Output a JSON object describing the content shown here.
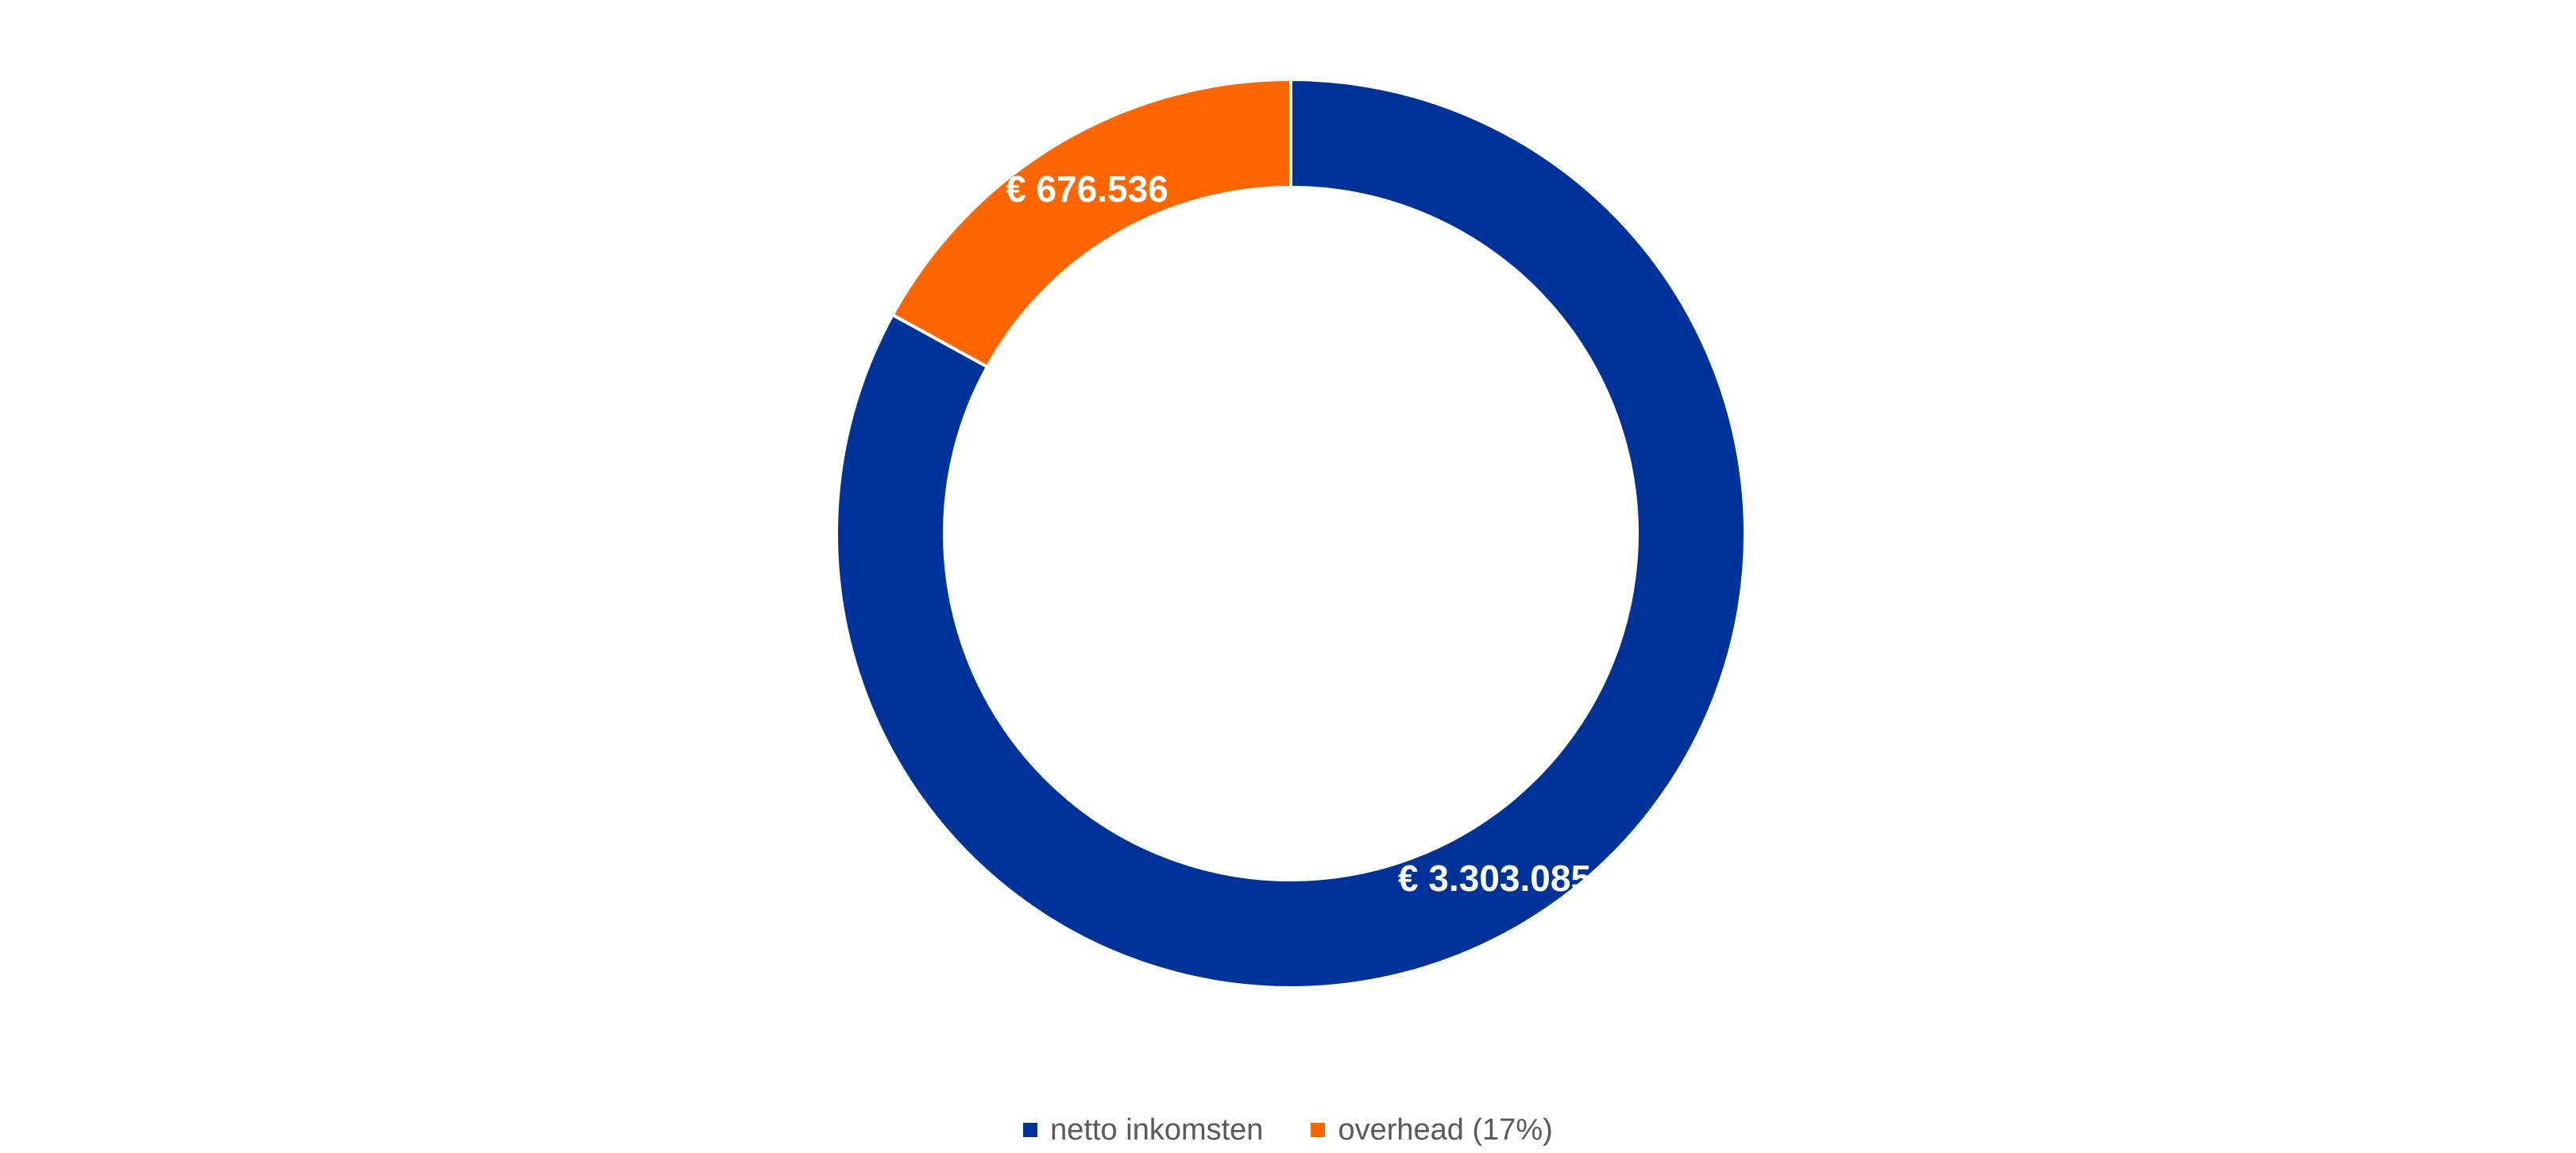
{
  "chart_data": {
    "type": "pie",
    "variant": "donut",
    "series": [
      {
        "name": "netto inkomsten",
        "value": 3303085,
        "label": "€ 3.303.085",
        "color": "#003399"
      },
      {
        "name": "overhead (17%)",
        "value": 676536,
        "label": "€ 676.536",
        "color": "#FF6600"
      }
    ],
    "legend": {
      "position": "bottom"
    }
  }
}
